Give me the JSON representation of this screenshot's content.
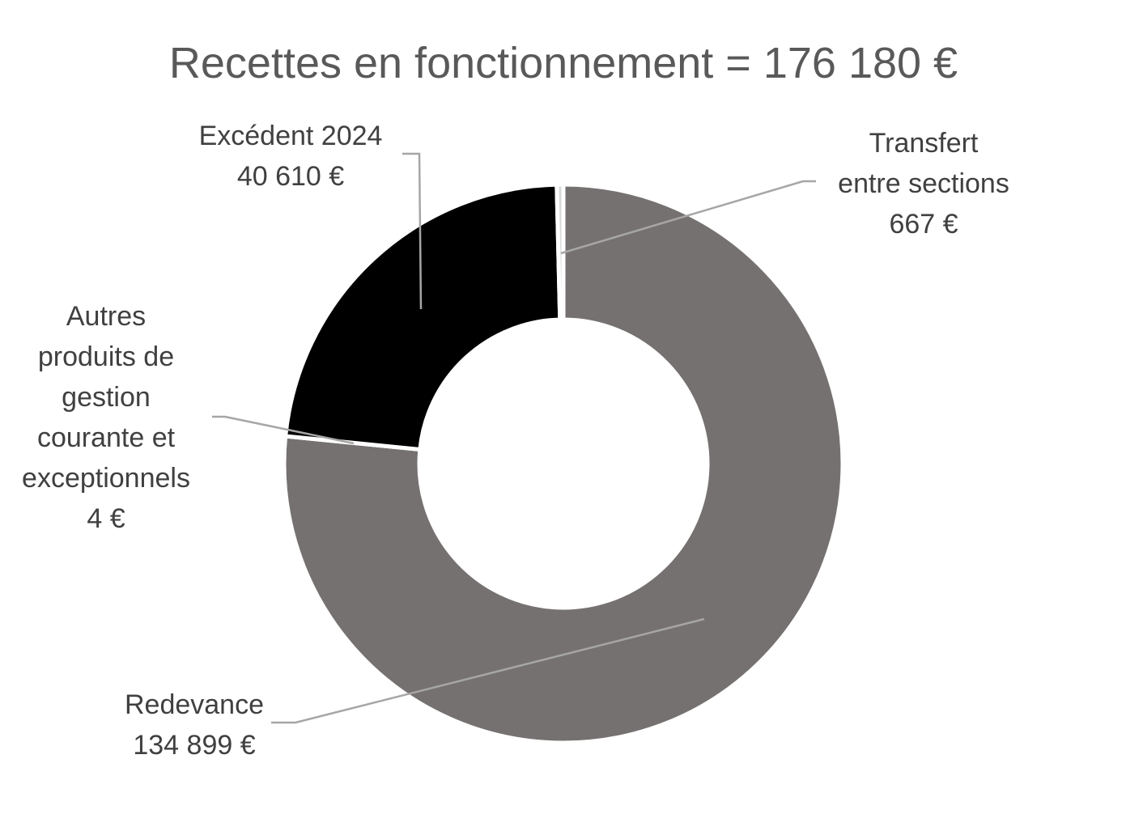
{
  "chart_data": {
    "type": "pie",
    "subtype": "donut",
    "title": "Recettes en fonctionnement = 176 180 €",
    "unit": "€",
    "slices": [
      {
        "name": "Redevance",
        "value": 134899,
        "label": [
          "Redevance",
          "134 899 €"
        ],
        "color": "#767171"
      },
      {
        "name": "Autres produits de gestion courante et exceptionnels",
        "value": 4,
        "label": [
          "Autres",
          "produits de",
          "gestion",
          "courante et",
          "exceptionnels",
          "4 €"
        ],
        "color": "#3a3a3a"
      },
      {
        "name": "Excédent 2024",
        "value": 40610,
        "label": [
          "Excédent 2024",
          "40 610 €"
        ],
        "color": "#000000"
      },
      {
        "name": "Transfert entre sections",
        "value": 667,
        "label": [
          "Transfert",
          "entre sections",
          "667 €"
        ],
        "color": "#d9d9d9"
      }
    ],
    "legend": "none",
    "colors": {
      "title": "#595959",
      "label": "#404040",
      "leader": "#a6a6a6"
    }
  }
}
